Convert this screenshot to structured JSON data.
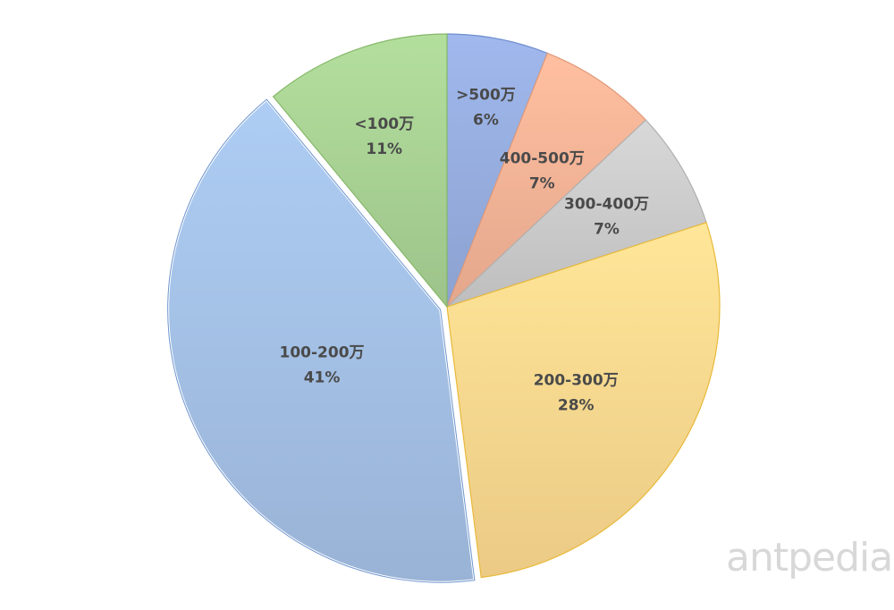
{
  "chart_data": {
    "type": "pie",
    "start_angle": "12 o'clock",
    "direction": "clockwise",
    "slices": [
      {
        "label": ">500万",
        "value": 6,
        "value_label": "6%",
        "color": "#97aee0"
      },
      {
        "label": "400-500万",
        "value": 7,
        "value_label": "7%",
        "color": "#f5b497"
      },
      {
        "label": "300-400万",
        "value": 7,
        "value_label": "7%",
        "color": "#cccccc"
      },
      {
        "label": "200-300万",
        "value": 28,
        "value_label": "28%",
        "color": "#fdd98f"
      },
      {
        "label": "100-200万",
        "value": 41,
        "value_label": "41%",
        "color": "#a4c1e6",
        "exploded": true
      },
      {
        "label": "<100万",
        "value": 11,
        "value_label": "11%",
        "color": "#a9d294"
      }
    ],
    "legend": "none",
    "data_labels": "inside"
  },
  "watermark": "antpedia"
}
